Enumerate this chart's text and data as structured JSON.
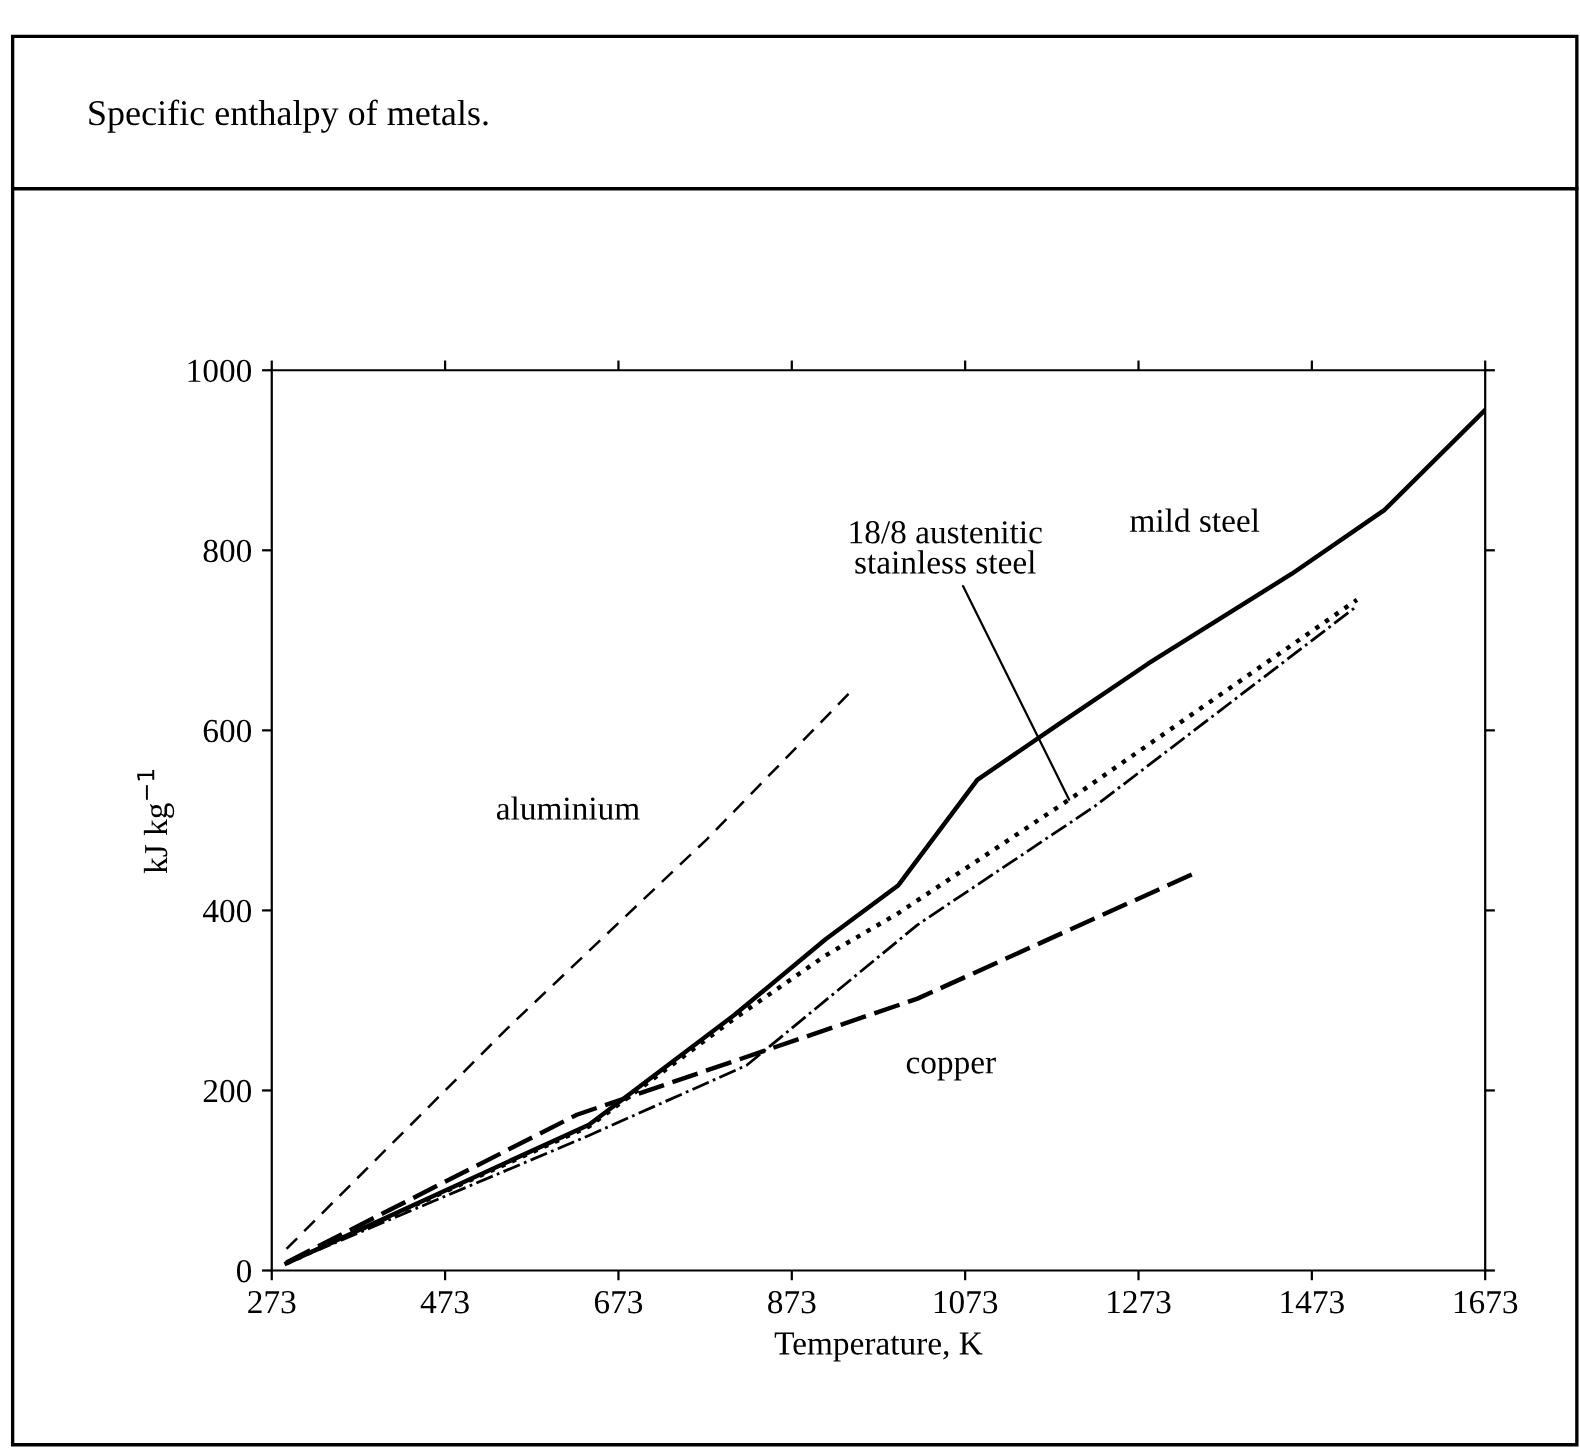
{
  "chart_data": {
    "type": "line",
    "title": "Specific enthalpy of metals.",
    "xlabel": "Temperature, K",
    "ylabel": "kJ kg$^{−1}$",
    "xlim": [
      273,
      1673
    ],
    "ylim": [
      0,
      1000
    ],
    "xticks": [
      273,
      473,
      673,
      873,
      1073,
      1273,
      1473,
      1673
    ],
    "yticks": [
      0,
      200,
      400,
      600,
      800,
      1000
    ],
    "grid": false,
    "legend": false,
    "marker": "none",
    "series": [
      {
        "name": "mild steel",
        "color": "#000000",
        "line_style": "solid",
        "x": [
          290,
          639,
          807,
          912,
          996,
          1087,
          1178,
          1284,
          1450,
          1557,
          1673
        ],
        "values": [
          8,
          162,
          284,
          368,
          428,
          545,
          605,
          674,
          774,
          845,
          956
        ]
      },
      {
        "name": "aluminium",
        "color": "#000000",
        "line_style": "dashed",
        "x": [
          290,
          548,
          775,
          943
        ],
        "values": [
          24,
          272,
          479,
          645
        ]
      },
      {
        "name": "copper",
        "color": "#000000",
        "line_style": "dashed",
        "x": [
          290,
          625,
          1018,
          1337
        ],
        "values": [
          9,
          173,
          302,
          441
        ]
      },
      {
        "color": "#000000",
        "line_style": "dotted",
        "x": [
          290,
          639,
          807,
          912,
          996,
          1193,
          1525
        ],
        "values": [
          8,
          160,
          280,
          350,
          397,
          523,
          745
        ]
      },
      {
        "color": "#000000",
        "line_style": "dashdot",
        "x": [
          290,
          639,
          821,
          1018,
          1223,
          1525
        ],
        "values": [
          8,
          150,
          228,
          384,
          516,
          738
        ]
      }
    ],
    "annotations": [
      {
        "text": "18/8 austenitic\nstainless steel",
        "x": 1193,
        "y": 523
      }
    ]
  }
}
